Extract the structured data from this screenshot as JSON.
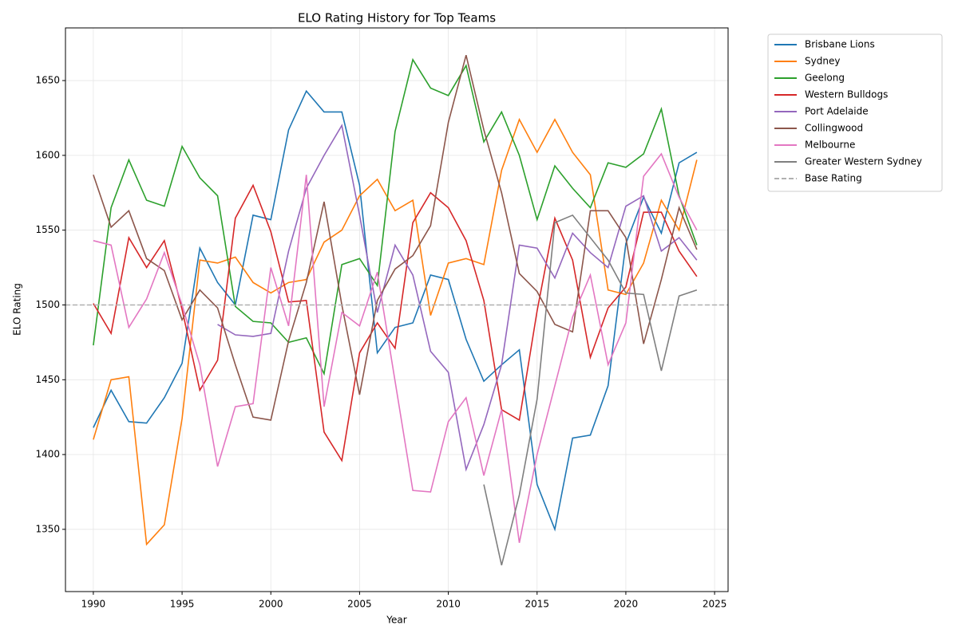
{
  "chart_data": {
    "type": "line",
    "title": "ELO Rating History for Top Teams",
    "x_label": "Year",
    "y_label": "ELO Rating",
    "x": [
      1990,
      1991,
      1992,
      1993,
      1994,
      1995,
      1996,
      1997,
      1998,
      1999,
      2000,
      2001,
      2002,
      2003,
      2004,
      2005,
      2006,
      2007,
      2008,
      2009,
      2010,
      2011,
      2012,
      2013,
      2014,
      2015,
      2016,
      2017,
      2018,
      2019,
      2020,
      2021,
      2022,
      2023,
      2024
    ],
    "xlim": [
      1988.43,
      2025.76
    ],
    "xticks": [
      1990,
      1995,
      2000,
      2005,
      2010,
      2015,
      2020,
      2025
    ],
    "ylim": [
      1308.4,
      1685.2
    ],
    "yticks": [
      1350,
      1400,
      1450,
      1500,
      1550,
      1600,
      1650
    ],
    "grid": true,
    "legend": "outside upper right",
    "series": [
      {
        "name": "Brisbane Lions",
        "color": "#1f77b4",
        "values": [
          1418,
          1443,
          1422,
          1421,
          1438,
          1461,
          1538,
          1515,
          1500,
          1560,
          1557,
          1617,
          1643,
          1629,
          1629,
          1580,
          1468,
          1485,
          1488,
          1520,
          1517,
          1477,
          1449,
          1460,
          1470,
          1380,
          1350,
          1411,
          1413,
          1446,
          1541,
          1572,
          1548,
          1595,
          1602
        ]
      },
      {
        "name": "Sydney",
        "color": "#ff7f0e",
        "values": [
          1410,
          1450,
          1452,
          1340,
          1353,
          1424,
          1530,
          1528,
          1532,
          1515,
          1508,
          1515,
          1517,
          1542,
          1550,
          1573,
          1584,
          1563,
          1570,
          1493,
          1528,
          1531,
          1527,
          1590,
          1624,
          1602,
          1624,
          1602,
          1587,
          1510,
          1507,
          1528,
          1570,
          1550,
          1597
        ]
      },
      {
        "name": "Geelong",
        "color": "#2ca02c",
        "values": [
          1473,
          1565,
          1597,
          1570,
          1566,
          1606,
          1585,
          1573,
          1499,
          1489,
          1488,
          1475,
          1478,
          1454,
          1527,
          1531,
          1513,
          1616,
          1664,
          1645,
          1640,
          1660,
          1609,
          1629,
          1600,
          1557,
          1593,
          1578,
          1565,
          1595,
          1592,
          1601,
          1631,
          1573,
          1540
        ]
      },
      {
        "name": "Western Bulldogs",
        "color": "#d62728",
        "values": [
          1501,
          1481,
          1545,
          1525,
          1543,
          1497,
          1443,
          1463,
          1558,
          1580,
          1549,
          1502,
          1503,
          1415,
          1396,
          1468,
          1488,
          1471,
          1555,
          1575,
          1565,
          1543,
          1503,
          1430,
          1423,
          1496,
          1558,
          1530,
          1465,
          1498,
          1512,
          1562,
          1562,
          1536,
          1519
        ]
      },
      {
        "name": "Port Adelaide",
        "color": "#9467bd",
        "values": [
          null,
          null,
          null,
          null,
          null,
          null,
          null,
          1487,
          1480,
          1479,
          1481,
          1536,
          1578,
          1600,
          1620,
          1560,
          1495,
          1540,
          1520,
          1469,
          1455,
          1390,
          1420,
          1460,
          1540,
          1538,
          1518,
          1548,
          1535,
          1525,
          1566,
          1573,
          1536,
          1545,
          1530
        ]
      },
      {
        "name": "Collingwood",
        "color": "#8c564b",
        "values": [
          1587,
          1552,
          1563,
          1531,
          1523,
          1490,
          1510,
          1498,
          1460,
          1425,
          1423,
          1476,
          1515,
          1569,
          1500,
          1440,
          1503,
          1524,
          1533,
          1553,
          1622,
          1667,
          1617,
          1575,
          1521,
          1509,
          1487,
          1482,
          1563,
          1563,
          1545,
          1474,
          1517,
          1565,
          1537
        ]
      },
      {
        "name": "Melbourne",
        "color": "#e377c2",
        "values": [
          1543,
          1540,
          1485,
          1504,
          1535,
          1500,
          1460,
          1392,
          1432,
          1434,
          1525,
          1486,
          1587,
          1432,
          1495,
          1486,
          1522,
          1449,
          1376,
          1375,
          1422,
          1438,
          1386,
          1430,
          1341,
          1400,
          1446,
          1492,
          1520,
          1460,
          1488,
          1586,
          1601,
          1572,
          1550
        ]
      },
      {
        "name": "Greater Western Sydney",
        "color": "#7f7f7f",
        "values": [
          null,
          null,
          null,
          null,
          null,
          null,
          null,
          null,
          null,
          null,
          null,
          null,
          null,
          null,
          null,
          null,
          null,
          null,
          null,
          null,
          null,
          null,
          1380,
          1326,
          1373,
          1437,
          1555,
          1560,
          1545,
          1530,
          1508,
          1507,
          1456,
          1506,
          1510
        ]
      }
    ],
    "baseline": {
      "name": "Base Rating",
      "value": 1500,
      "color": "#b0b0b0"
    }
  }
}
